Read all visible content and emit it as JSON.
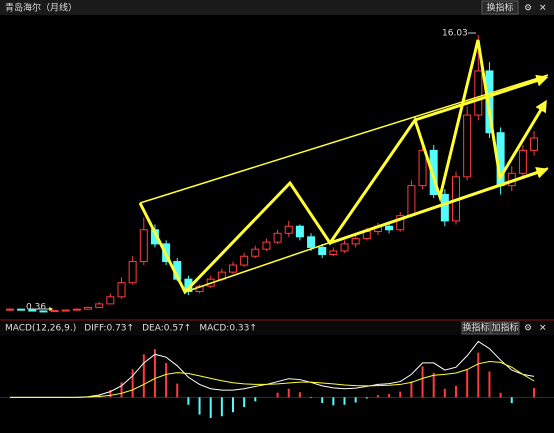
{
  "chart_data": {
    "type": "candlestick",
    "title": "青岛海尔（月线）",
    "buttons": [
      "换指标",
      "加指标"
    ],
    "annotations": [
      "16.03",
      "0.36"
    ],
    "ylim": [
      0,
      17
    ],
    "up_color": "#ff3c3c",
    "down_color": "#54fcfc",
    "series": {
      "open": [
        0.45,
        0.5,
        0.45,
        0.4,
        0.38,
        0.42,
        0.45,
        0.5,
        0.6,
        0.8,
        1.2,
        2.0,
        3.2,
        5.0,
        4.2,
        3.2,
        2.2,
        1.5,
        1.8,
        2.2,
        2.6,
        3.0,
        3.5,
        3.9,
        4.3,
        4.8,
        5.2,
        4.6,
        4.0,
        3.6,
        3.8,
        4.2,
        4.5,
        4.9,
        5.2,
        5.0,
        5.8,
        7.5,
        9.5,
        7.0,
        5.5,
        8.0,
        11.5,
        14.0,
        10.5,
        7.5,
        8.2,
        9.5
      ],
      "high": [
        0.55,
        0.52,
        0.48,
        0.42,
        0.45,
        0.48,
        0.55,
        0.65,
        0.9,
        1.4,
        2.3,
        3.5,
        5.7,
        5.3,
        4.4,
        3.4,
        2.4,
        1.9,
        2.4,
        2.8,
        3.2,
        3.7,
        4.1,
        4.5,
        5.0,
        5.5,
        5.3,
        4.8,
        4.2,
        4.0,
        4.4,
        4.7,
        5.1,
        5.4,
        5.4,
        6.0,
        7.8,
        10.0,
        9.8,
        7.3,
        8.3,
        12.0,
        16.03,
        14.5,
        10.8,
        8.6,
        9.8,
        10.6
      ],
      "low": [
        0.42,
        0.43,
        0.38,
        0.36,
        0.37,
        0.4,
        0.43,
        0.48,
        0.58,
        0.78,
        1.1,
        1.9,
        3.0,
        4.0,
        3.0,
        2.1,
        1.3,
        1.4,
        1.7,
        2.1,
        2.5,
        2.9,
        3.4,
        3.8,
        4.2,
        4.6,
        4.4,
        3.8,
        3.4,
        3.5,
        3.7,
        4.0,
        4.4,
        4.7,
        4.8,
        4.9,
        5.7,
        7.3,
        6.8,
        5.2,
        5.3,
        7.8,
        11.2,
        10.2,
        7.0,
        7.2,
        8.0,
        9.2
      ],
      "close": [
        0.5,
        0.45,
        0.4,
        0.38,
        0.42,
        0.45,
        0.5,
        0.6,
        0.8,
        1.2,
        2.0,
        3.2,
        5.0,
        4.2,
        3.2,
        2.2,
        1.5,
        1.8,
        2.2,
        2.6,
        3.0,
        3.5,
        3.9,
        4.3,
        4.8,
        5.2,
        4.6,
        4.0,
        3.6,
        3.8,
        4.2,
        4.5,
        4.9,
        5.2,
        5.0,
        5.8,
        7.5,
        9.5,
        7.0,
        5.5,
        8.0,
        11.5,
        14.0,
        10.5,
        7.5,
        8.2,
        9.5,
        10.2
      ]
    },
    "macd": {
      "labels": [
        "MACD(12,26,9.)",
        "DIFF:0.73↑",
        "DEA:0.57↑",
        "MACD:0.33↑"
      ],
      "label_colors": [
        "#dddddd",
        "#ffffff",
        "#ffff33",
        "#ff33ff"
      ],
      "ylim": [
        -1,
        2
      ],
      "diff": [
        0,
        0,
        0,
        0,
        0,
        0,
        0,
        0.02,
        0.08,
        0.2,
        0.4,
        0.75,
        1.2,
        1.5,
        1.4,
        1.1,
        0.7,
        0.45,
        0.3,
        0.25,
        0.25,
        0.3,
        0.38,
        0.45,
        0.55,
        0.65,
        0.62,
        0.52,
        0.4,
        0.33,
        0.3,
        0.32,
        0.38,
        0.45,
        0.48,
        0.55,
        0.8,
        1.2,
        1.2,
        0.95,
        1.05,
        1.45,
        1.95,
        1.7,
        1.3,
        0.95,
        0.8,
        0.73
      ],
      "dea": [
        0,
        0,
        0,
        0,
        0,
        0,
        0,
        0.01,
        0.03,
        0.07,
        0.14,
        0.26,
        0.45,
        0.66,
        0.8,
        0.86,
        0.83,
        0.75,
        0.66,
        0.58,
        0.51,
        0.47,
        0.45,
        0.45,
        0.47,
        0.5,
        0.53,
        0.53,
        0.5,
        0.47,
        0.43,
        0.41,
        0.4,
        0.41,
        0.42,
        0.45,
        0.52,
        0.66,
        0.77,
        0.8,
        0.85,
        0.97,
        1.17,
        1.25,
        1.22,
        1.05,
        0.8,
        0.57
      ],
      "hist": [
        0,
        0,
        0,
        0,
        0,
        0,
        0,
        0.02,
        0.1,
        0.26,
        0.52,
        0.98,
        1.5,
        1.68,
        1.2,
        0.48,
        -0.26,
        -0.6,
        -0.72,
        -0.66,
        -0.52,
        -0.34,
        -0.14,
        0,
        0.16,
        0.3,
        0.18,
        -0.02,
        -0.2,
        -0.28,
        -0.26,
        -0.18,
        -0.04,
        0.08,
        0.12,
        0.2,
        0.56,
        1.08,
        0.86,
        0.3,
        0.4,
        0.96,
        1.56,
        0.9,
        0.16,
        -0.2,
        0,
        0.33
      ]
    }
  }
}
